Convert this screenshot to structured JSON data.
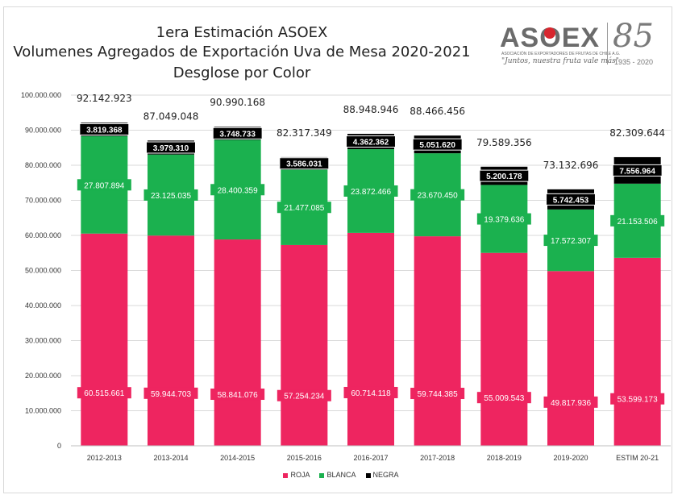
{
  "header": {
    "title_line1": "1era Estimación ASOEX",
    "title_line2": "Volumenes Agregados de Exportación Uva de Mesa 2020-2021",
    "title_line3": "Desglose por Color"
  },
  "logo": {
    "word_pre": "AS",
    "word_o": "O",
    "word_post": "EX",
    "subtitle": "ASOCIACIÓN DE EXPORTADORES DE FRUTAS DE CHILE A.G.",
    "slogan": "\"Juntos, nuestra fruta vale más\"",
    "anniversary": "85",
    "years": "1935 - 2020"
  },
  "chart_data": {
    "type": "bar",
    "stacked": true,
    "categories": [
      "2012-2013",
      "2013-2014",
      "2014-2015",
      "2015-2016",
      "2016-2017",
      "2017-2018",
      "2018-2019",
      "2019-2020",
      "ESTIM 20-21"
    ],
    "series": [
      {
        "name": "ROJA",
        "color": "#ee2560",
        "values": [
          60515661,
          59944703,
          58841076,
          57254234,
          60714118,
          59744385,
          55009543,
          49817936,
          53599173
        ],
        "labels": [
          "60.515.661",
          "59.944.703",
          "58.841.076",
          "57.254.234",
          "60.714.118",
          "59.744.385",
          "55.009.543",
          "49.817.936",
          "53.599.173"
        ]
      },
      {
        "name": "BLANCA",
        "color": "#1bb14f",
        "values": [
          27807894,
          23125035,
          28400359,
          21477085,
          23872466,
          23670450,
          19379636,
          17572307,
          21153506
        ],
        "labels": [
          "27.807.894",
          "23.125.035",
          "28.400.359",
          "21.477.085",
          "23.872.466",
          "23.670.450",
          "19.379.636",
          "17.572.307",
          "21.153.506"
        ]
      },
      {
        "name": "NEGRA",
        "color": "#000000",
        "values": [
          3819368,
          3979310,
          3748733,
          3586031,
          4362362,
          5051620,
          5200178,
          5742453,
          7556964
        ],
        "labels": [
          "3.819.368",
          "3.979.310",
          "3.748.733",
          "3.586.031",
          "4.362.362",
          "5.051.620",
          "5.200.178",
          "5.742.453",
          "7.556.964"
        ]
      }
    ],
    "totals": [
      92142923,
      87049048,
      90990168,
      82317349,
      88948946,
      88466456,
      79589356,
      73132696,
      82309644
    ],
    "total_labels": [
      "92.142.923",
      "87.049.048",
      "90.990.168",
      "82.317.349",
      "88.948.946",
      "88.466.456",
      "79.589.356",
      "73.132.696",
      "82.309.644"
    ],
    "ylim": [
      0,
      100000000
    ],
    "yticks": [
      0,
      10000000,
      20000000,
      30000000,
      40000000,
      50000000,
      60000000,
      70000000,
      80000000,
      90000000,
      100000000
    ],
    "ytick_labels": [
      "0",
      "10.000.000",
      "20.000.000",
      "30.000.000",
      "40.000.000",
      "50.000.000",
      "60.000.000",
      "70.000.000",
      "80.000.000",
      "90.000.000",
      "100.000.000"
    ],
    "grid": true,
    "legend_position": "bottom"
  }
}
